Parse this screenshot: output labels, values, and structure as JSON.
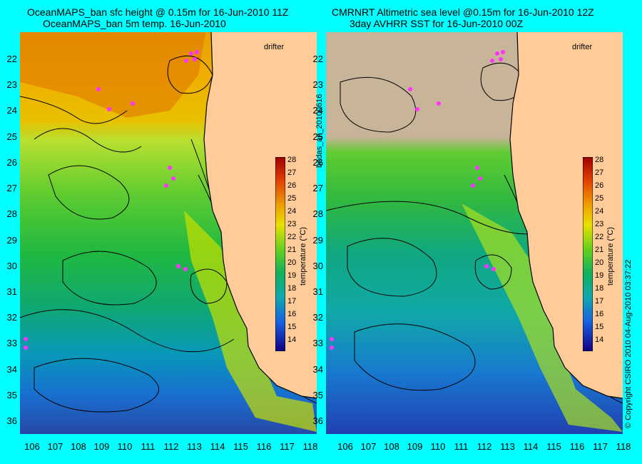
{
  "left": {
    "title_line1": "OceanMAPS_ban sfc height @ 0.15m for 16-Jun-2010 11Z",
    "title_line2": "OceanMAPS_ban 5m temp. 16-Jun-2010"
  },
  "right": {
    "title_line1": "CMRNRT Altimetric sea level  @0.15m  for 16-Jun-2010 12Z",
    "title_line2": "3day AVHRR SST for 16-Jun-2010 00Z"
  },
  "drifter_label": "drifter",
  "colorbar": {
    "label": "temperature (°C)",
    "ticks": [
      "28",
      "27",
      "26",
      "25",
      "24",
      "23",
      "22",
      "21",
      "20",
      "19",
      "18",
      "17",
      "16",
      "15",
      "14"
    ]
  },
  "lat_ticks": [
    "22",
    "23",
    "24",
    "25",
    "26",
    "27",
    "28",
    "29",
    "30",
    "31",
    "32",
    "33",
    "34",
    "35",
    "36"
  ],
  "lon_ticks": [
    "106",
    "107",
    "108",
    "109",
    "110",
    "111",
    "112",
    "113",
    "114",
    "115",
    "116",
    "117",
    "118"
  ],
  "side_text": {
    "left": "bodas_an_20100616",
    "right": "© Copyright CSIRO 2010   04-Aug-2010 03:37:22"
  },
  "colors": {
    "background": "#00ffff",
    "land": "#ffcc99",
    "land_masked": "#c8b498",
    "drifter": "#ff33ff",
    "contour": "#000000",
    "coastline_contour": "#40e0e0"
  }
}
